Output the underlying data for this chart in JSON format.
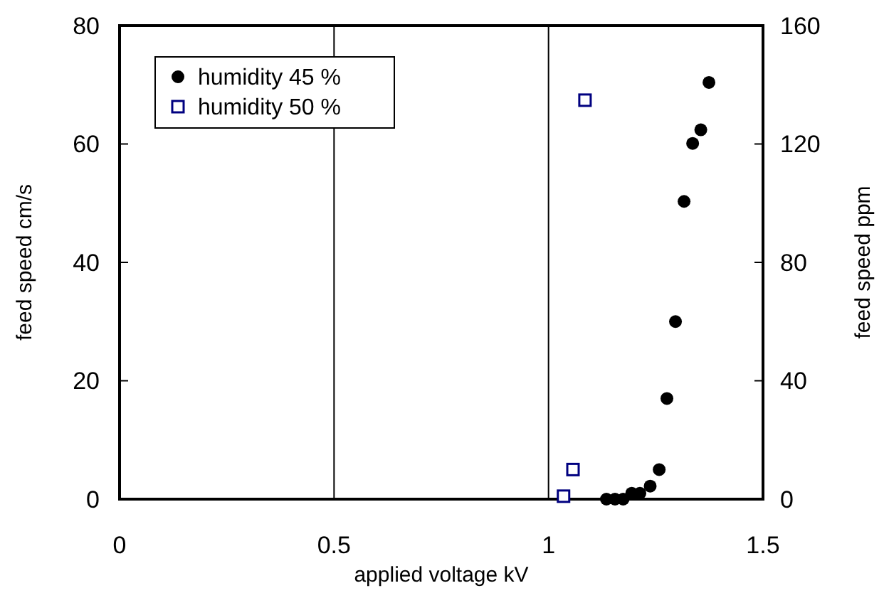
{
  "chart_data": {
    "type": "scatter",
    "xlabel": "applied voltage  kV",
    "ylabel": "feed speed  cm/s",
    "y2label": "feed speed  ppm",
    "xlim": [
      0,
      1.5
    ],
    "xticks": [
      0,
      0.5,
      1,
      1.5
    ],
    "ylim": [
      0,
      80
    ],
    "yticks": [
      0,
      20,
      40,
      60,
      80
    ],
    "y2lim": [
      0,
      160
    ],
    "y2ticks": [
      0,
      40,
      80,
      120,
      160
    ],
    "grid": "x",
    "legend": "top left",
    "series": [
      {
        "name": "humidity 45 %",
        "color": "#000000",
        "marker": "circle",
        "x": [
          1.135,
          1.155,
          1.174,
          1.194,
          1.213,
          1.237,
          1.258,
          1.276,
          1.296,
          1.316,
          1.336,
          1.355,
          1.374
        ],
        "values": [
          0,
          0,
          0,
          1,
          1,
          2.2,
          5,
          17,
          30,
          50.3,
          60.1,
          62.4,
          70.4
        ]
      },
      {
        "name": "humidity 50 %",
        "color": "#000080",
        "marker": "square",
        "x": [
          1.035,
          1.057,
          1.085
        ],
        "values": [
          0.5,
          5,
          67.4
        ]
      }
    ]
  }
}
